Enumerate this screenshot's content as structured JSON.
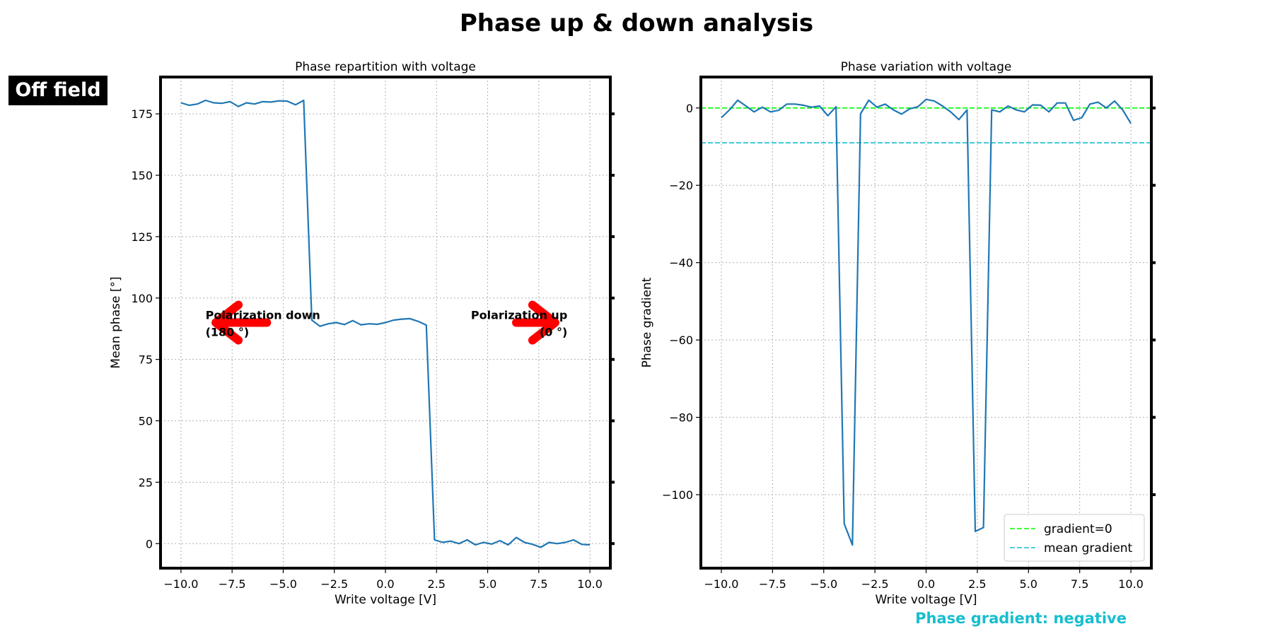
{
  "figure": {
    "suptitle": "Phase up & down analysis",
    "badge": "Off field",
    "status_text": "Phase gradient: negative"
  },
  "colors": {
    "line": "#1f77b4",
    "arrow": "#ff0000",
    "zero_line": "#00ff00",
    "mean_line": "#17becf",
    "status": "#17becf",
    "grid": "#b0b0b0",
    "badge_bg": "#000000"
  },
  "chart_data": [
    {
      "type": "line",
      "title": "Phase repartition with voltage",
      "xlabel": "Write voltage [V]",
      "ylabel": "Mean phase [°]",
      "xlim": [
        -11,
        11
      ],
      "ylim": [
        -10,
        190
      ],
      "xticks": [
        -10,
        -7.5,
        -5,
        -2.5,
        0,
        2.5,
        5,
        7.5,
        10
      ],
      "xtick_labels": [
        "−10.0",
        "−7.5",
        "−5.0",
        "−2.5",
        "0.0",
        "2.5",
        "5.0",
        "7.5",
        "10.0"
      ],
      "yticks": [
        0,
        25,
        50,
        75,
        100,
        125,
        150,
        175
      ],
      "ytick_labels": [
        "0",
        "25",
        "50",
        "75",
        "100",
        "125",
        "150",
        "175"
      ],
      "grid": true,
      "x": [
        -10.0,
        -9.6,
        -9.2,
        -8.8,
        -8.4,
        -8.0,
        -7.6,
        -7.2,
        -6.8,
        -6.4,
        -6.0,
        -5.6,
        -5.2,
        -4.8,
        -4.4,
        -4.0,
        -3.6,
        -3.2,
        -2.8,
        -2.4,
        -2.0,
        -1.6,
        -1.2,
        -0.8,
        -0.4,
        0.0,
        0.4,
        0.8,
        1.2,
        1.6,
        2.0,
        2.4,
        2.8,
        3.2,
        3.6,
        4.0,
        4.4,
        4.8,
        5.2,
        5.6,
        6.0,
        6.4,
        6.8,
        7.2,
        7.6,
        8.0,
        8.4,
        8.8,
        9.2,
        9.6,
        10.0
      ],
      "y": [
        179.5,
        178.5,
        179.0,
        180.5,
        179.5,
        179.3,
        180.0,
        178.0,
        179.5,
        179.0,
        180.0,
        179.8,
        180.3,
        180.2,
        178.7,
        180.5,
        91.0,
        88.5,
        89.5,
        90.0,
        89.2,
        90.8,
        89.1,
        89.5,
        89.3,
        90.0,
        91.0,
        91.4,
        91.6,
        90.5,
        89.0,
        1.5,
        0.5,
        1.0,
        0.0,
        1.5,
        -0.5,
        0.5,
        -0.2,
        1.2,
        -0.5,
        2.5,
        0.5,
        -0.3,
        -1.5,
        0.5,
        0.0,
        0.5,
        1.5,
        -0.3,
        -0.5
      ],
      "annotations": [
        {
          "text_line1": "Polarization down",
          "text_line2": "(180 °)",
          "direction": "left"
        },
        {
          "text_line1": "Polarization up",
          "text_line2": "(0 °)",
          "direction": "right"
        }
      ]
    },
    {
      "type": "line",
      "title": "Phase variation with voltage",
      "xlabel": "Write voltage [V]",
      "ylabel": "Phase gradient",
      "xlim": [
        -11,
        11
      ],
      "ylim": [
        -119,
        8
      ],
      "xticks": [
        -10,
        -7.5,
        -5,
        -2.5,
        0,
        2.5,
        5,
        7.5,
        10
      ],
      "xtick_labels": [
        "−10.0",
        "−7.5",
        "−5.0",
        "−2.5",
        "0.0",
        "2.5",
        "5.0",
        "7.5",
        "10.0"
      ],
      "yticks": [
        0,
        -20,
        -40,
        -60,
        -80,
        -100
      ],
      "ytick_labels": [
        "0",
        "−20",
        "−40",
        "−60",
        "−80",
        "−100"
      ],
      "grid": true,
      "hlines": [
        {
          "y": 0,
          "label": "gradient=0",
          "style": "dashed",
          "color_key": "zero_line"
        },
        {
          "y": -9,
          "label": "mean gradient",
          "style": "dashed",
          "color_key": "mean_line"
        }
      ],
      "legend_position": "lower-right",
      "x": [
        -10.0,
        -9.6,
        -9.2,
        -8.8,
        -8.4,
        -8.0,
        -7.6,
        -7.2,
        -6.8,
        -6.4,
        -6.0,
        -5.6,
        -5.2,
        -4.8,
        -4.4,
        -4.0,
        -3.6,
        -3.2,
        -2.8,
        -2.4,
        -2.0,
        -1.6,
        -1.2,
        -0.8,
        -0.4,
        0.0,
        0.4,
        0.8,
        1.2,
        1.6,
        2.0,
        2.4,
        2.8,
        3.2,
        3.6,
        4.0,
        4.4,
        4.8,
        5.2,
        5.6,
        6.0,
        6.4,
        6.8,
        7.2,
        7.6,
        8.0,
        8.4,
        8.8,
        9.2,
        9.6,
        10.0
      ],
      "y": [
        -2.5,
        -0.5,
        2.0,
        0.5,
        -1.0,
        0.2,
        -1.0,
        -0.6,
        1.0,
        1.0,
        0.7,
        0.2,
        0.5,
        -2.0,
        0.3,
        -107.5,
        -113.0,
        -1.5,
        2.0,
        0.2,
        1.0,
        -0.5,
        -1.6,
        -0.2,
        0.3,
        2.2,
        1.8,
        0.5,
        -1.0,
        -3.0,
        -0.5,
        -109.5,
        -108.5,
        -0.5,
        -1.0,
        0.5,
        -0.5,
        -1.0,
        0.8,
        0.7,
        -1.0,
        1.3,
        1.3,
        -3.2,
        -2.5,
        1.0,
        1.5,
        0.0,
        1.8,
        -0.5,
        -4.0
      ]
    }
  ]
}
